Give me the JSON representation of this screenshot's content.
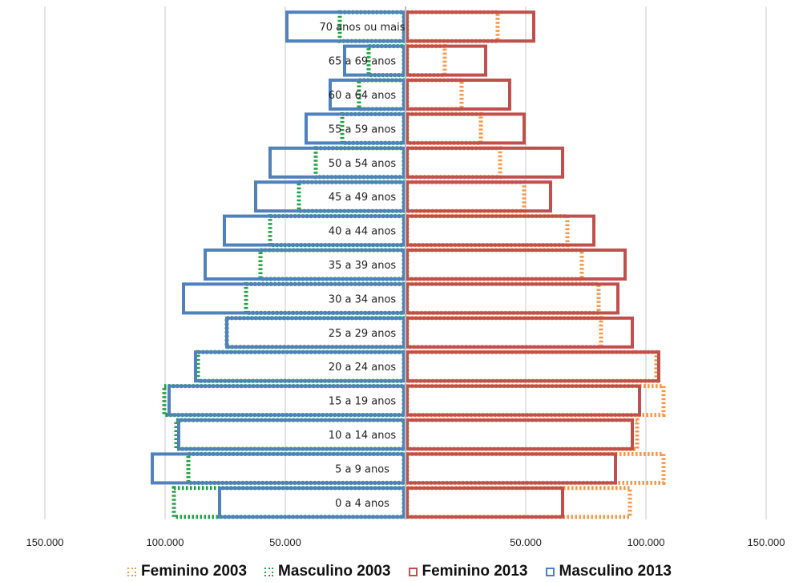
{
  "chart_data": {
    "type": "bar",
    "orientation": "horizontal-population-pyramid",
    "categories": [
      "0 a 4 anos",
      "5 a 9 anos",
      "10 a 14 anos",
      "15 a 19 anos",
      "20 a 24 anos",
      "25 a 29 anos",
      "30 a 34 anos",
      "35 a 39 anos",
      "40 a 44 anos",
      "45 a 49 anos",
      "50 a 54 anos",
      "55 a 59 anos",
      "60 a 64 anos",
      "65 a 69 anos",
      "70 anos ou mais"
    ],
    "series": [
      {
        "name": "Feminino 2003",
        "side": "right",
        "style": "dotted",
        "color": "#F79646",
        "values": [
          94000,
          108000,
          97000,
          108000,
          105000,
          82000,
          81000,
          74000,
          68000,
          50000,
          40000,
          32000,
          24000,
          17000,
          39000
        ]
      },
      {
        "name": "Masculino 2003",
        "side": "left",
        "style": "dotted",
        "color": "#1FA044",
        "values": [
          97000,
          91000,
          96000,
          101000,
          87000,
          75000,
          67000,
          61000,
          57000,
          45000,
          38000,
          27000,
          20000,
          16000,
          28000
        ]
      },
      {
        "name": "Feminino 2013",
        "side": "right",
        "style": "solid",
        "color": "#C0504D",
        "values": [
          66000,
          88000,
          95000,
          98000,
          106000,
          95000,
          89000,
          92000,
          79000,
          61000,
          66000,
          50000,
          44000,
          34000,
          54000
        ]
      },
      {
        "name": "Masculino 2013",
        "side": "left",
        "style": "solid",
        "color": "#4F81BD",
        "values": [
          78000,
          106000,
          95000,
          99000,
          88000,
          75000,
          93000,
          84000,
          76000,
          63000,
          57000,
          42000,
          32000,
          26000,
          50000
        ]
      }
    ],
    "x_ticks": [
      "150.000",
      "100.000",
      "50.000",
      "50.000",
      "100.000",
      "150.000"
    ],
    "xlim": [
      -150000,
      150000
    ],
    "grid": true,
    "legend_position": "bottom"
  }
}
